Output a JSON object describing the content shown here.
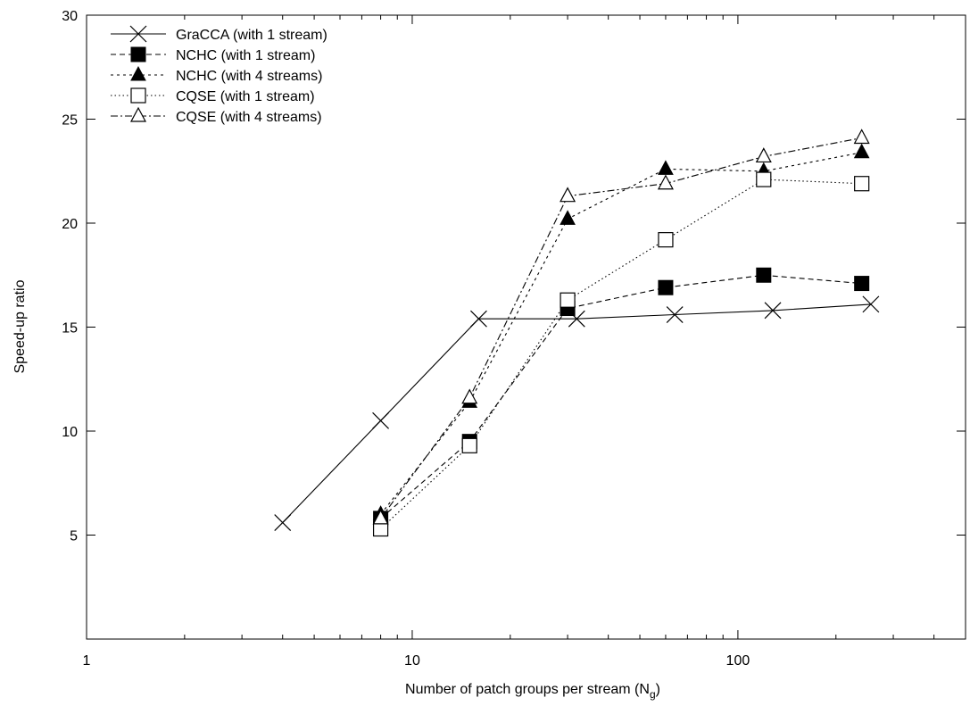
{
  "chart_data": {
    "type": "line",
    "xlabel": "Number of patch groups per stream (N",
    "xlabel_sub": "g",
    "xlabel_close": ")",
    "ylabel": "Speed-up ratio",
    "xscale": "log",
    "xlim": [
      1,
      500
    ],
    "ylim": [
      0,
      30
    ],
    "xticks": [
      1,
      10,
      100
    ],
    "xtick_labels": [
      "1",
      "10",
      "100"
    ],
    "yticks": [
      5,
      10,
      15,
      20,
      25,
      30
    ],
    "ytick_labels": [
      "5",
      "10",
      "15",
      "20",
      "25",
      "30"
    ],
    "grid": false,
    "legend_position": "top-left",
    "series": [
      {
        "name": "GraCCA (with 1 stream)",
        "marker": "x",
        "dash": "solid",
        "x": [
          4,
          8,
          16,
          32,
          64,
          128,
          256
        ],
        "y": [
          5.6,
          10.5,
          15.4,
          15.4,
          15.6,
          15.8,
          16.1
        ]
      },
      {
        "name": "NCHC (with 1 stream)",
        "marker": "filled-square",
        "dash": "dashed",
        "x": [
          8,
          15,
          30,
          60,
          120,
          240
        ],
        "y": [
          5.8,
          9.5,
          15.9,
          16.9,
          17.5,
          17.1
        ]
      },
      {
        "name": "NCHC (with 4 streams)",
        "marker": "filled-triangle",
        "dash": "dotted-short",
        "x": [
          8,
          15,
          30,
          60,
          120,
          240
        ],
        "y": [
          6.0,
          11.4,
          20.2,
          22.6,
          22.5,
          23.4
        ]
      },
      {
        "name": "CQSE (with 1 stream)",
        "marker": "open-square",
        "dash": "dotted",
        "x": [
          8,
          15,
          30,
          60,
          120,
          240
        ],
        "y": [
          5.3,
          9.3,
          16.3,
          19.2,
          22.1,
          21.9
        ]
      },
      {
        "name": "CQSE (with 4 streams)",
        "marker": "open-triangle",
        "dash": "dash-dot",
        "x": [
          8,
          15,
          30,
          60,
          120,
          240
        ],
        "y": [
          5.8,
          11.6,
          21.3,
          21.9,
          23.2,
          24.1
        ]
      }
    ]
  }
}
